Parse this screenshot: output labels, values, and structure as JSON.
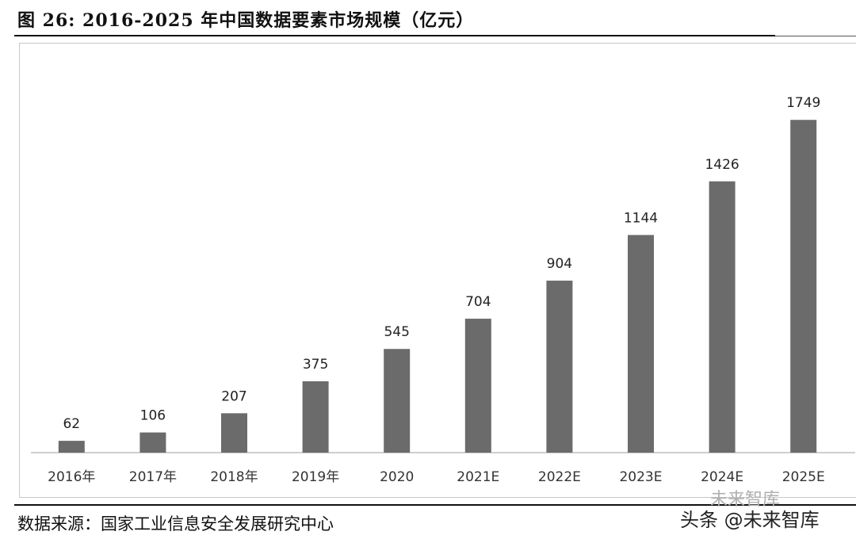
{
  "figure": {
    "title": "图 26: 2016-2025 年中国数据要素市场规模（亿元）",
    "source": "数据来源：国家工业信息安全发展研究中心",
    "watermark": "头条 @未来智库",
    "watermark_sub": "未来智库"
  },
  "chart_data": {
    "type": "bar",
    "title": "图 26: 2016-2025 年中国数据要素市场规模（亿元）",
    "categories": [
      "2016年",
      "2017年",
      "2018年",
      "2019年",
      "2020",
      "2021E",
      "2022E",
      "2023E",
      "2024E",
      "2025E"
    ],
    "values": [
      62,
      106,
      207,
      375,
      545,
      704,
      904,
      1144,
      1426,
      1749
    ],
    "xlabel": "",
    "ylabel": "",
    "ylim": [
      0,
      1850
    ],
    "grid": false,
    "legend": "none",
    "bar_color": "#6b6b6b",
    "data_labels": true
  }
}
